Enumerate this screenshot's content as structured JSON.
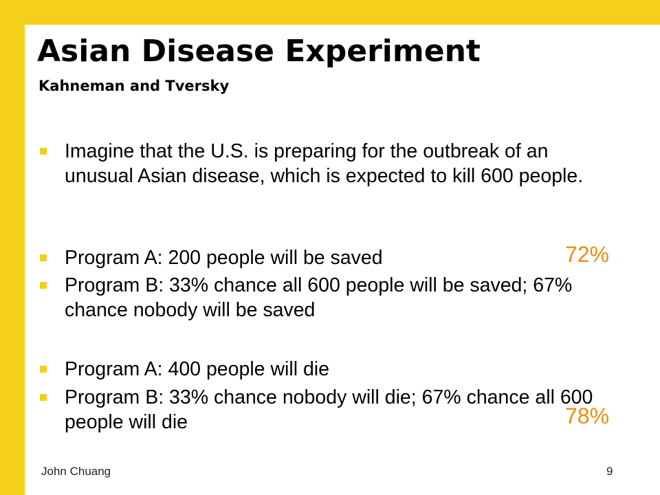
{
  "slide": {
    "title": "Asian Disease Experiment",
    "subtitle": "Kahneman and Tversky",
    "bullets": [
      "Imagine that the U.S. is preparing for the outbreak of an unusual Asian disease, which is expected to kill 600 people.",
      "Program A: 200 people will be saved",
      "Program B: 33% chance all 600 people will be saved; 67% chance nobody will be saved",
      "Program A: 400 people will die",
      "Program B: 33% chance nobody will die; 67% chance all 600 people will die"
    ],
    "percentages": [
      "72%",
      "78%"
    ],
    "footer": {
      "author": "John Chuang",
      "page_number": "9"
    }
  },
  "colors": {
    "accent": "#f5cf1c",
    "highlight": "#f28a0c"
  }
}
